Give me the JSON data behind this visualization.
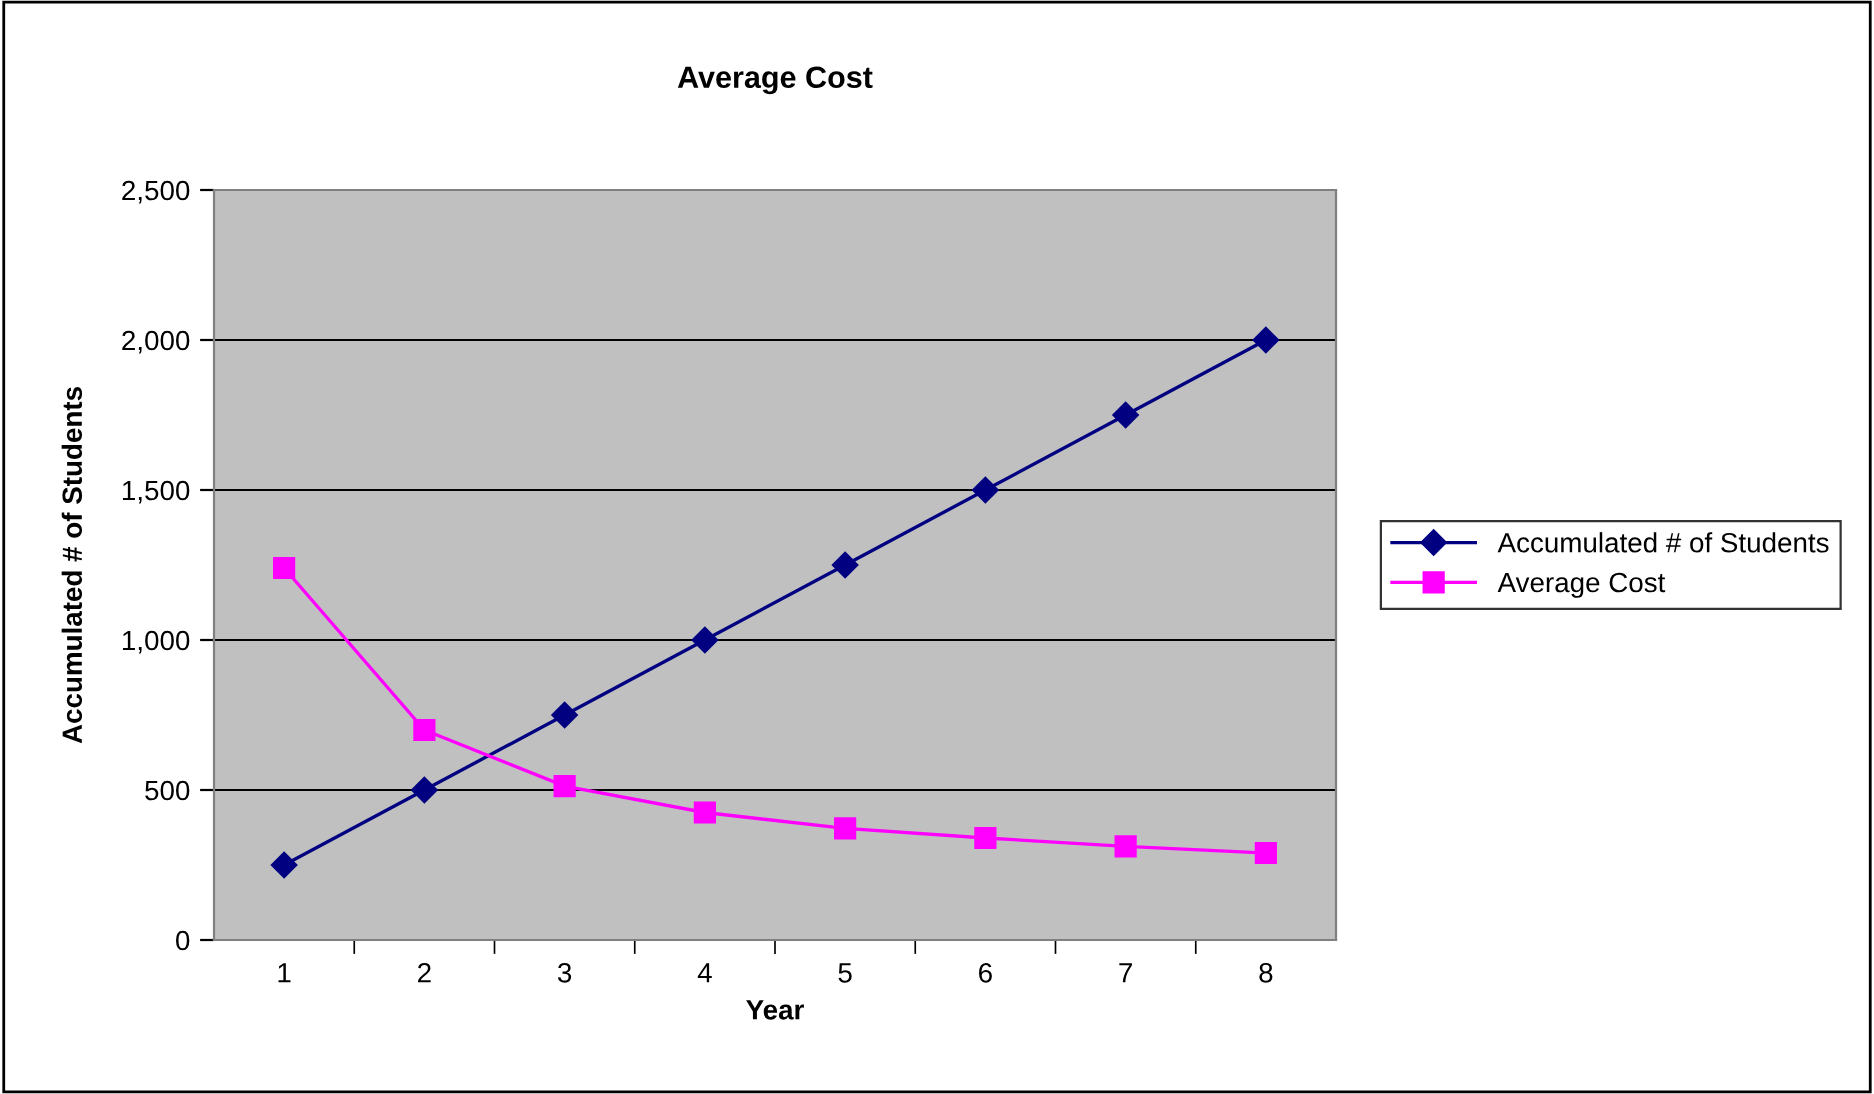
{
  "chart_data": {
    "type": "line",
    "title": "Average Cost",
    "xlabel": "Year",
    "ylabel": "Accumulated # of Students",
    "categories": [
      "1",
      "2",
      "3",
      "4",
      "5",
      "6",
      "7",
      "8"
    ],
    "series": [
      {
        "name": "Accumulated # of Students",
        "color": "#000080",
        "marker": "diamond",
        "values": [
          250,
          500,
          750,
          1000,
          1250,
          1500,
          1750,
          2000
        ]
      },
      {
        "name": "Average Cost",
        "color": "#ff00ff",
        "marker": "square",
        "values": [
          1240,
          700,
          513,
          425,
          372,
          340,
          312,
          290
        ]
      }
    ],
    "ylim": [
      0,
      2500
    ],
    "yticks": [
      0,
      {
        "value": 500,
        "label": "500"
      },
      {
        "value": 1000,
        "label": "1,000"
      },
      {
        "value": 1500,
        "label": "1,500"
      },
      {
        "value": 2000,
        "label": "2,000"
      },
      {
        "value": 2500,
        "label": "2,500"
      }
    ],
    "grid": "y",
    "legend": "right",
    "line_style": "solid"
  }
}
